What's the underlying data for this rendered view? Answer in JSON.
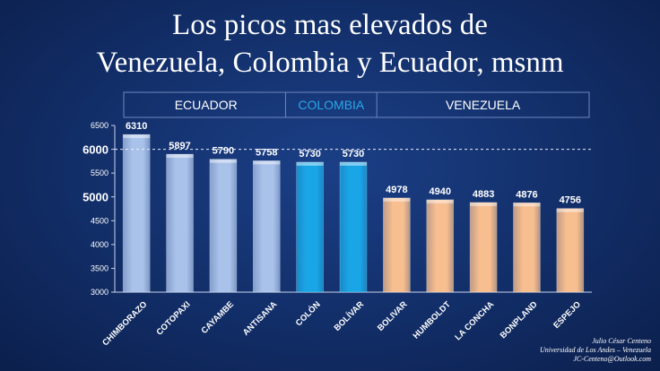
{
  "title_line1": "Los picos mas elevados de",
  "title_line2": "Venezuela, Colombia y Ecuador, msnm",
  "chart_data": {
    "type": "bar",
    "categories": [
      "CHIMBORAZO",
      "COTOPAXI",
      "CAYAMBE",
      "ANTISANA",
      "COLÓN",
      "BOLÍVAR",
      "BOLIVAR",
      "HUMBOLDT",
      "LA CONCHA",
      "BONPLAND",
      "ESPEJO"
    ],
    "values": [
      6310,
      5897,
      5790,
      5758,
      5730,
      5730,
      4978,
      4940,
      4883,
      4876,
      4756
    ],
    "groups": [
      {
        "name": "ECUADOR",
        "start": 0,
        "end": 3,
        "color": "#a9c2ea",
        "label_color": "#ffffff"
      },
      {
        "name": "COLOMBIA",
        "start": 4,
        "end": 5,
        "color": "#1aa6e6",
        "label_color": "#2aa7e8"
      },
      {
        "name": "VENEZUELA",
        "start": 6,
        "end": 10,
        "color": "#f7be8f",
        "label_color": "#ffffff"
      }
    ],
    "ylim": [
      3000,
      6500
    ],
    "yticks": [
      "3000",
      "3500",
      "4000",
      "4500",
      "5000",
      "5500",
      "6000",
      "6500"
    ],
    "reference_line": 6000,
    "grid": false
  },
  "credits": {
    "line1": "Julio César Centeno",
    "line2": "Universidad de Los Andes – Venezuela",
    "line3": "JC-Centeno@Outlook.com"
  }
}
